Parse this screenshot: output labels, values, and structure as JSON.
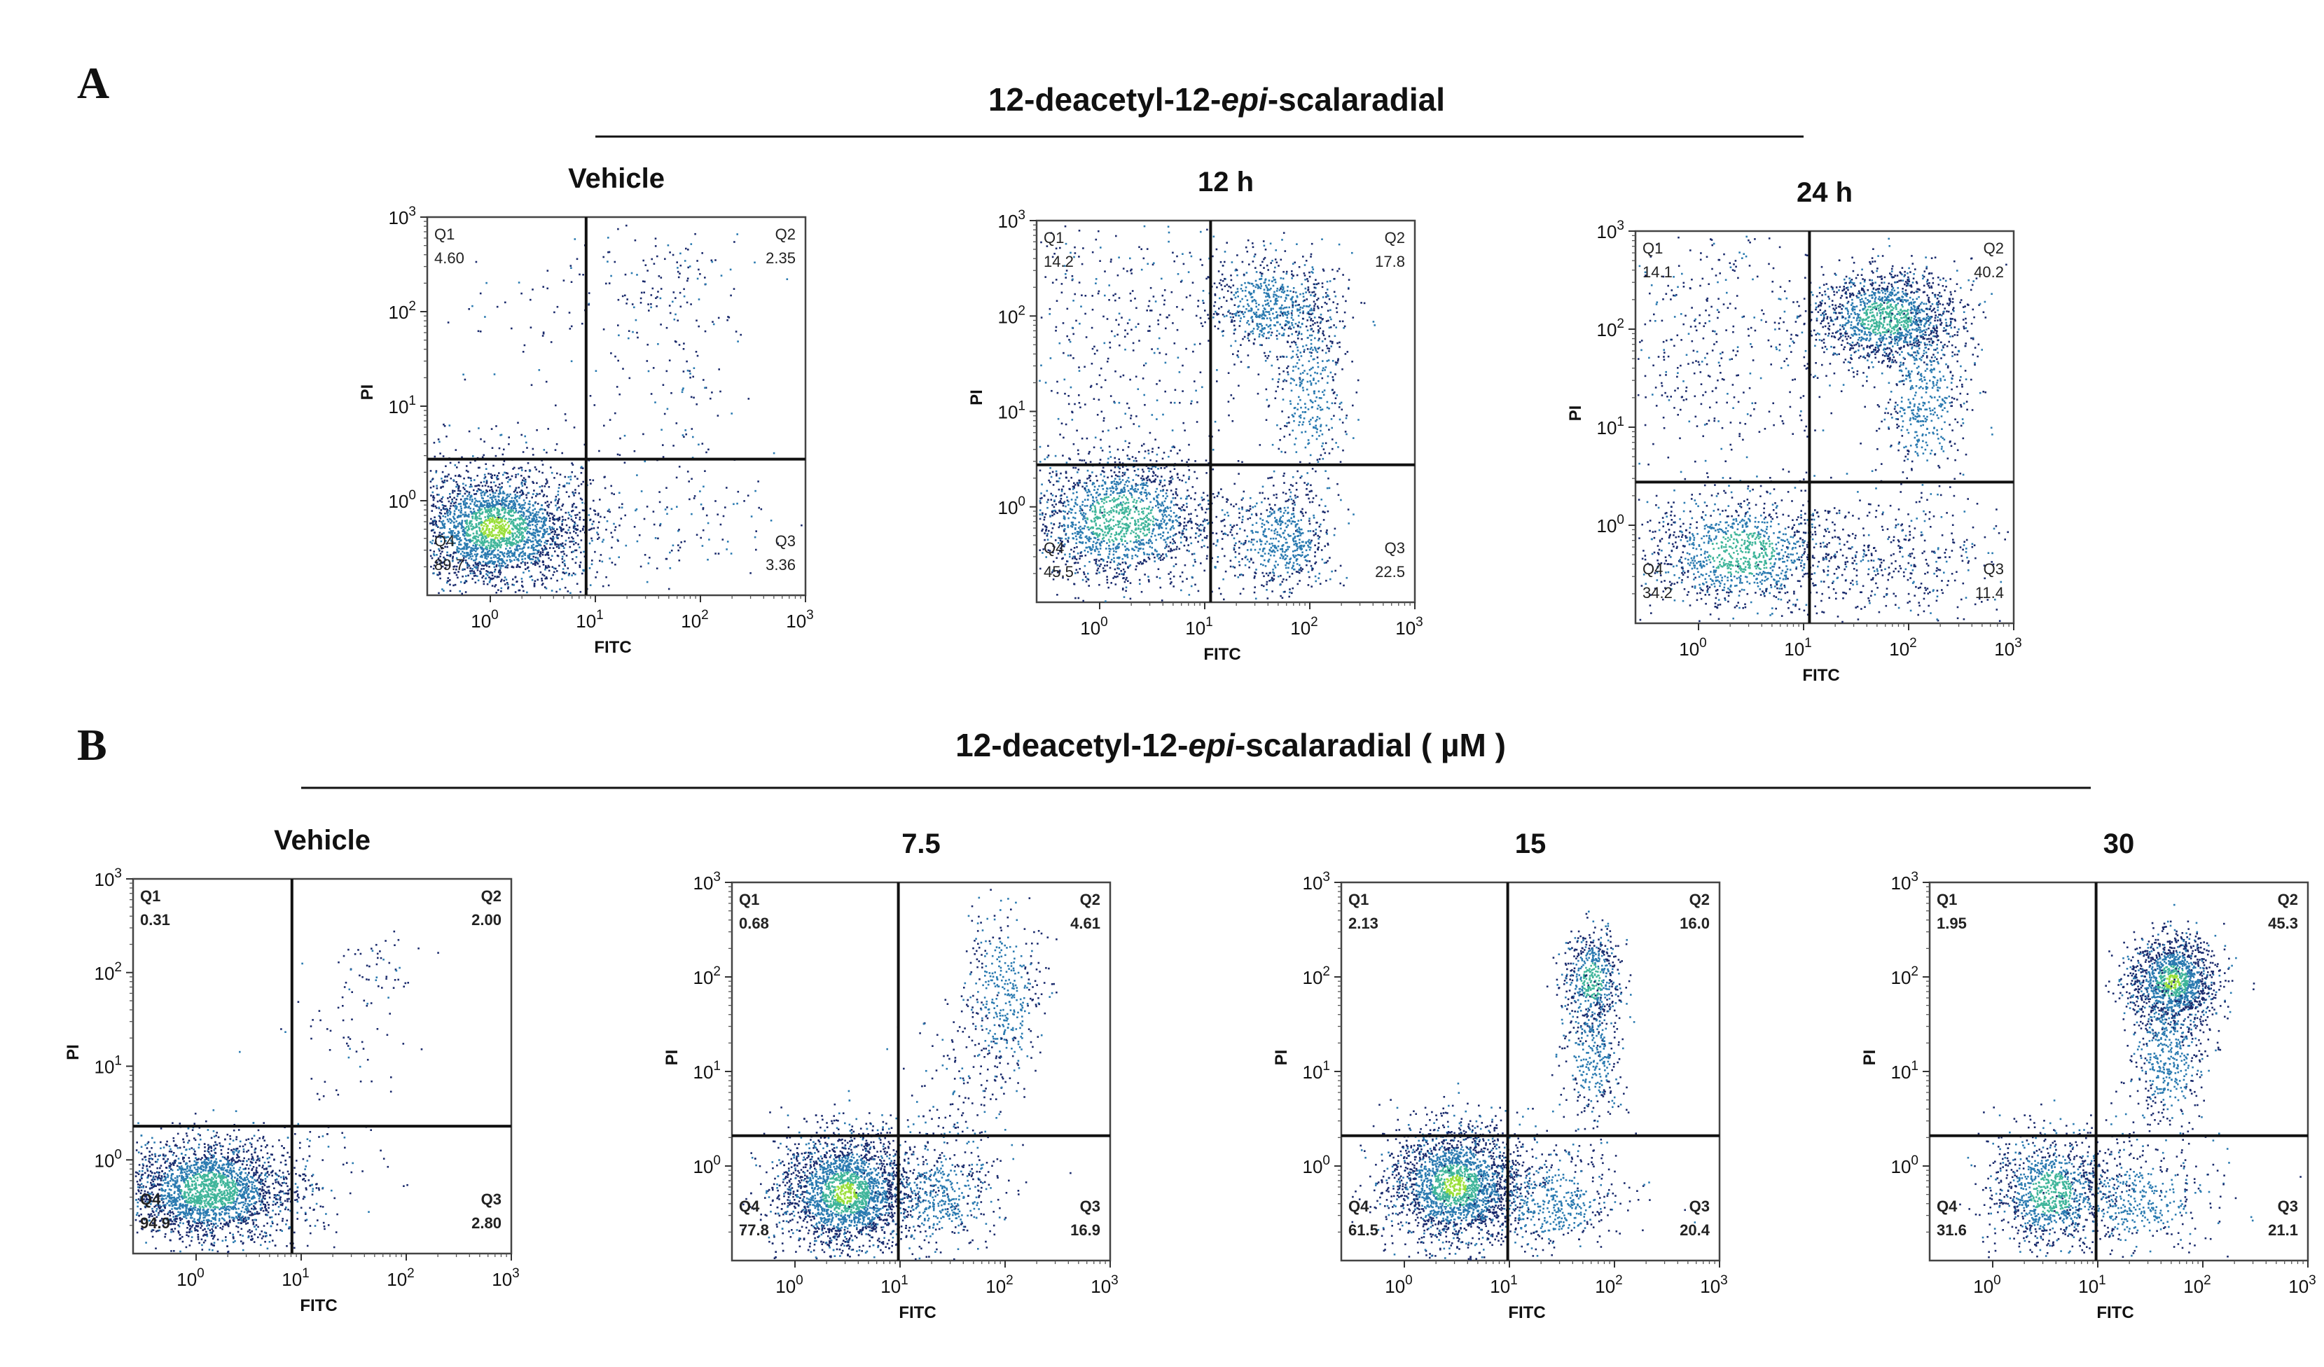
{
  "figure": {
    "panel_a": {
      "letter": "A",
      "title_prefix": "12-deacetyl-12-",
      "title_italic": "epi",
      "title_suffix": "-scalaradial"
    },
    "panel_b": {
      "letter": "B",
      "title_prefix": "12-deacetyl-12-",
      "title_italic": "epi",
      "title_suffix": "-scalaradial",
      "title_units": "( µM )"
    }
  },
  "chart_data": [
    {
      "type": "scatter",
      "panel": "A",
      "title": "Vehicle",
      "xlabel": "FITC",
      "ylabel": "PI",
      "x_scale": "log",
      "y_scale": "log",
      "xlim_decades": [
        -0.6,
        3
      ],
      "ylim_decades": [
        -1,
        3
      ],
      "x_ticks": [
        "10^0",
        "10^1",
        "10^2",
        "10^3"
      ],
      "y_ticks": [
        "10^0",
        "10^1",
        "10^2",
        "10^3"
      ],
      "quadrants": [
        {
          "name": "Q1",
          "value": "4.60"
        },
        {
          "name": "Q2",
          "value": "2.35"
        },
        {
          "name": "Q3",
          "value": "3.36"
        },
        {
          "name": "Q4",
          "value": "89.7"
        }
      ]
    },
    {
      "type": "scatter",
      "panel": "A",
      "title": "12 h",
      "xlabel": "FITC",
      "ylabel": "PI",
      "x_scale": "log",
      "y_scale": "log",
      "xlim_decades": [
        -0.6,
        3
      ],
      "ylim_decades": [
        -1,
        3
      ],
      "x_ticks": [
        "10^0",
        "10^1",
        "10^2",
        "10^3"
      ],
      "y_ticks": [
        "10^0",
        "10^1",
        "10^2",
        "10^3"
      ],
      "quadrants": [
        {
          "name": "Q1",
          "value": "14.2"
        },
        {
          "name": "Q2",
          "value": "17.8"
        },
        {
          "name": "Q3",
          "value": "22.5"
        },
        {
          "name": "Q4",
          "value": "45.5"
        }
      ]
    },
    {
      "type": "scatter",
      "panel": "A",
      "title": "24 h",
      "xlabel": "FITC",
      "ylabel": "PI",
      "x_scale": "log",
      "y_scale": "log",
      "xlim_decades": [
        -0.6,
        3
      ],
      "ylim_decades": [
        -1,
        3
      ],
      "x_ticks": [
        "10^0",
        "10^1",
        "10^2",
        "10^3"
      ],
      "y_ticks": [
        "10^0",
        "10^1",
        "10^2",
        "10^3"
      ],
      "quadrants": [
        {
          "name": "Q1",
          "value": "14.1"
        },
        {
          "name": "Q2",
          "value": "40.2"
        },
        {
          "name": "Q3",
          "value": "11.4"
        },
        {
          "name": "Q4",
          "value": "34.2"
        }
      ]
    },
    {
      "type": "scatter",
      "panel": "B",
      "title": "Vehicle",
      "xlabel": "FITC",
      "ylabel": "PI",
      "x_scale": "log",
      "y_scale": "log",
      "xlim_decades": [
        -0.6,
        3
      ],
      "ylim_decades": [
        -1,
        3
      ],
      "x_ticks": [
        "10^0",
        "10^1",
        "10^2",
        "10^3"
      ],
      "y_ticks": [
        "10^0",
        "10^1",
        "10^2",
        "10^3"
      ],
      "quadrants": [
        {
          "name": "Q1",
          "value": "0.31"
        },
        {
          "name": "Q2",
          "value": "2.00"
        },
        {
          "name": "Q3",
          "value": "2.80"
        },
        {
          "name": "Q4",
          "value": "94.9"
        }
      ]
    },
    {
      "type": "scatter",
      "panel": "B",
      "title": "7.5",
      "xlabel": "FITC",
      "ylabel": "PI",
      "x_scale": "log",
      "y_scale": "log",
      "xlim_decades": [
        -0.6,
        3
      ],
      "ylim_decades": [
        -1,
        3
      ],
      "x_ticks": [
        "10^0",
        "10^1",
        "10^2",
        "10^3"
      ],
      "y_ticks": [
        "10^0",
        "10^1",
        "10^2",
        "10^3"
      ],
      "quadrants": [
        {
          "name": "Q1",
          "value": "0.68"
        },
        {
          "name": "Q2",
          "value": "4.61"
        },
        {
          "name": "Q3",
          "value": "16.9"
        },
        {
          "name": "Q4",
          "value": "77.8"
        }
      ]
    },
    {
      "type": "scatter",
      "panel": "B",
      "title": "15",
      "xlabel": "FITC",
      "ylabel": "PI",
      "x_scale": "log",
      "y_scale": "log",
      "xlim_decades": [
        -0.6,
        3
      ],
      "ylim_decades": [
        -1,
        3
      ],
      "x_ticks": [
        "10^0",
        "10^1",
        "10^2",
        "10^3"
      ],
      "y_ticks": [
        "10^0",
        "10^1",
        "10^2",
        "10^3"
      ],
      "quadrants": [
        {
          "name": "Q1",
          "value": "2.13"
        },
        {
          "name": "Q2",
          "value": "16.0"
        },
        {
          "name": "Q3",
          "value": "20.4"
        },
        {
          "name": "Q4",
          "value": "61.5"
        }
      ]
    },
    {
      "type": "scatter",
      "panel": "B",
      "title": "30",
      "xlabel": "FITC",
      "ylabel": "PI",
      "x_scale": "log",
      "y_scale": "log",
      "xlim_decades": [
        -0.6,
        3
      ],
      "ylim_decades": [
        -1,
        3
      ],
      "x_ticks": [
        "10^0",
        "10^1",
        "10^2",
        "10^3"
      ],
      "y_ticks": [
        "10^0",
        "10^1",
        "10^2",
        "10^3"
      ],
      "quadrants": [
        {
          "name": "Q1",
          "value": "1.95"
        },
        {
          "name": "Q2",
          "value": "45.3"
        },
        {
          "name": "Q3",
          "value": "21.1"
        },
        {
          "name": "Q4",
          "value": "31.6"
        }
      ]
    }
  ],
  "colors": {
    "dot_sparse": "#1a2a6c",
    "dot_mid": "#2a7ab0",
    "dot_dense": "#3fb59a",
    "dot_peak": "#9adf3a",
    "gate": "#111111",
    "frame": "#444444"
  }
}
